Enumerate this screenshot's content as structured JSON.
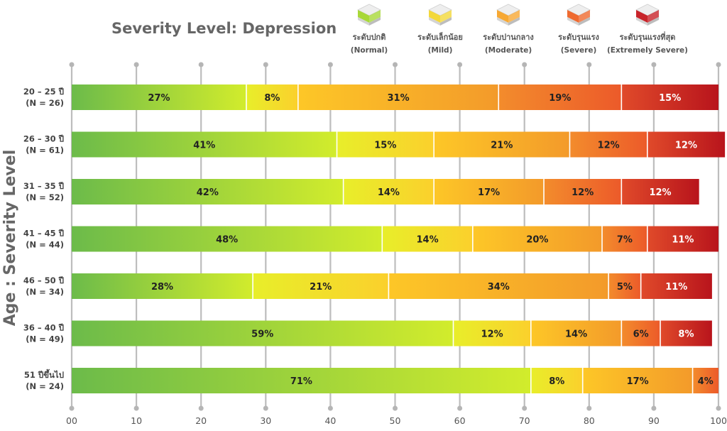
{
  "chart_data": {
    "type": "bar",
    "orientation": "horizontal",
    "stacked": true,
    "title": "Severity Level: Depression",
    "ylabel": "Age : Severity Level",
    "xlabel": "",
    "xlim": [
      0,
      100
    ],
    "xticks": [
      "00",
      "10",
      "20",
      "30",
      "40",
      "50",
      "60",
      "70",
      "80",
      "90",
      "100"
    ],
    "legend_position": "top-right",
    "categories": [
      {
        "line1": "20 – 25 ปี",
        "line2": "(N = 26)"
      },
      {
        "line1": "26 – 30 ปี",
        "line2": "(N = 61)"
      },
      {
        "line1": "31 – 35 ปี",
        "line2": "(N = 52)"
      },
      {
        "line1": "41 – 45 ปี",
        "line2": "(N = 44)"
      },
      {
        "line1": "46 – 50 ปี",
        "line2": "(N = 34)"
      },
      {
        "line1": "36 – 40 ปี",
        "line2": "(N = 49)"
      },
      {
        "line1": "51 ปีขึ้นไป",
        "line2": "(N = 24)"
      }
    ],
    "series": [
      {
        "name": "ระดับปกติ",
        "sub": "(Normal)",
        "color_start": "#6cbb4a",
        "color_end": "#d2ec2c",
        "label_color": "#222222",
        "icon_color": "#a8d838",
        "values": [
          27,
          41,
          42,
          48,
          28,
          59,
          71
        ]
      },
      {
        "name": "ระดับเล็กน้อย",
        "sub": "(Mild)",
        "color_start": "#e8ee2a",
        "color_end": "#fbd02c",
        "label_color": "#222222",
        "icon_color": "#f3d83a",
        "values": [
          8,
          15,
          14,
          14,
          21,
          12,
          8
        ]
      },
      {
        "name": "ระดับปานกลาง",
        "sub": "(Moderate)",
        "color_start": "#fdc727",
        "color_end": "#f39a2a",
        "label_color": "#222222",
        "icon_color": "#f7a833",
        "values": [
          31,
          21,
          17,
          20,
          34,
          14,
          17
        ]
      },
      {
        "name": "ระดับรุนแรง",
        "sub": "(Severe)",
        "color_start": "#f38c2c",
        "color_end": "#ec5a2a",
        "label_color": "#222222",
        "icon_color": "#ef6a30",
        "values": [
          19,
          12,
          12,
          7,
          5,
          6,
          4
        ]
      },
      {
        "name": "ระดับรุนแรงที่สุด",
        "sub": "(Extremely Severe)",
        "color_start": "#e04a2a",
        "color_end": "#b8141c",
        "label_color": "#ffffff",
        "icon_color": "#c8242a",
        "values": [
          15,
          12,
          12,
          11,
          11,
          8,
          0
        ]
      }
    ]
  }
}
